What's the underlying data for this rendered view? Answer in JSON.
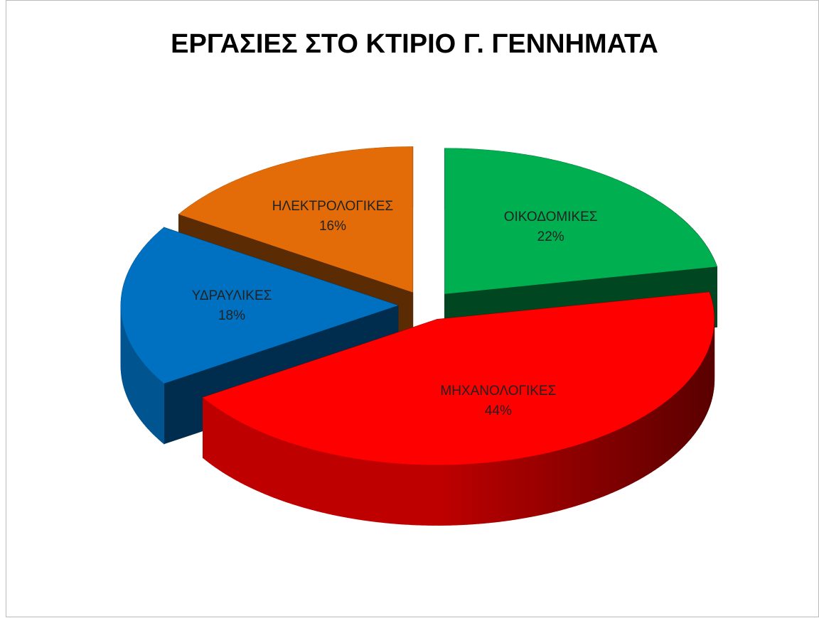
{
  "chart_data": {
    "type": "pie3d",
    "title": "ΕΡΓΑΣΙΕΣ ΣΤΟ ΚΤΙΡΙΟ Γ. ΓΕΝΝΗΜΑΤΑ",
    "categories": [
      "ΟΙΚΟΔΟΜΙΚΕΣ",
      "ΜΗΧΑΝΟΛΟΓΙΚΕΣ",
      "ΥΔΡΑΥΛΙΚΕΣ",
      "ΗΛΕΚΤΡΟΛΟΓΙΚΕΣ"
    ],
    "values": [
      22,
      44,
      18,
      16
    ],
    "value_labels": [
      "22%",
      "44%",
      "18%",
      "16%"
    ],
    "colors": [
      "#00b050",
      "#ff0000",
      "#0070c0",
      "#e36c09"
    ]
  }
}
